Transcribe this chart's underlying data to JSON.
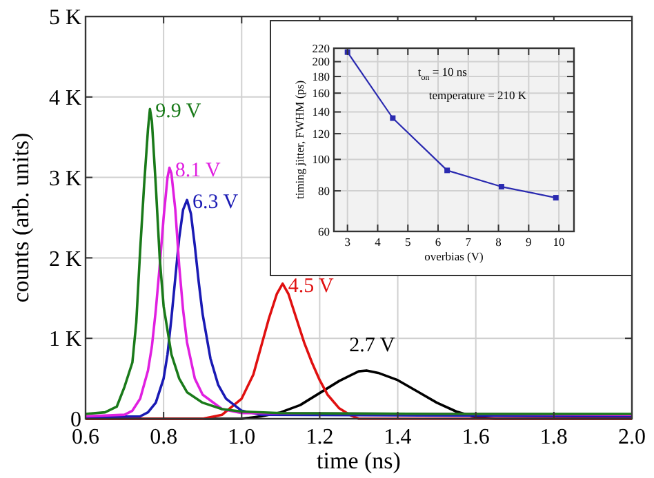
{
  "chart_data": [
    {
      "type": "line",
      "xlabel": "time (ns)",
      "ylabel": "counts (arb. units)",
      "xlim": [
        0.6,
        2.0
      ],
      "ylim": [
        0,
        5000
      ],
      "xticks": [
        0.6,
        0.8,
        {
          "value": 1,
          "label": "1.0"
        },
        1.2,
        1.4,
        1.6,
        1.8,
        {
          "value": 2,
          "label": "2.0"
        }
      ],
      "yticks": [
        0,
        {
          "value": 1000,
          "label": "1 K"
        },
        {
          "value": 2000,
          "label": "2 K"
        },
        {
          "value": 3000,
          "label": "3 K"
        },
        {
          "value": 4000,
          "label": "4 K"
        },
        {
          "value": 5000,
          "label": "5 K"
        }
      ],
      "grid": true,
      "legend": false,
      "series": [
        {
          "name": "2.7 V",
          "color": "#000000",
          "x": [
            0.6,
            1.0,
            1.05,
            1.1,
            1.15,
            1.2,
            1.25,
            1.3,
            1.32,
            1.35,
            1.4,
            1.45,
            1.5,
            1.55,
            1.6,
            1.65,
            2.0
          ],
          "values": [
            0,
            0,
            30,
            80,
            170,
            320,
            470,
            590,
            600,
            570,
            480,
            340,
            200,
            90,
            20,
            0,
            0
          ]
        },
        {
          "name": "4.5 V",
          "color": "#e01010",
          "x": [
            0.6,
            0.9,
            0.95,
            1.0,
            1.03,
            1.05,
            1.07,
            1.09,
            1.105,
            1.12,
            1.14,
            1.16,
            1.18,
            1.2,
            1.22,
            1.25,
            1.28,
            1.3,
            2.0
          ],
          "values": [
            0,
            0,
            50,
            250,
            550,
            900,
            1250,
            1550,
            1680,
            1550,
            1250,
            950,
            700,
            480,
            300,
            130,
            40,
            0,
            0
          ]
        },
        {
          "name": "6.3 V",
          "color": "#1a1ab4",
          "x": [
            0.6,
            0.74,
            0.76,
            0.78,
            0.8,
            0.81,
            0.82,
            0.83,
            0.84,
            0.85,
            0.86,
            0.87,
            0.88,
            0.89,
            0.9,
            0.92,
            0.94,
            0.96,
            1.0,
            1.05,
            2.0
          ],
          "values": [
            20,
            30,
            80,
            200,
            500,
            800,
            1250,
            1750,
            2250,
            2600,
            2720,
            2550,
            2150,
            1700,
            1300,
            750,
            420,
            250,
            100,
            50,
            30
          ]
        },
        {
          "name": "8.1 V",
          "color": "#e020e0",
          "x": [
            0.6,
            0.7,
            0.72,
            0.74,
            0.76,
            0.77,
            0.78,
            0.79,
            0.8,
            0.81,
            0.815,
            0.82,
            0.83,
            0.84,
            0.85,
            0.86,
            0.88,
            0.9,
            0.95,
            1.0,
            2.0
          ],
          "values": [
            30,
            50,
            100,
            250,
            600,
            900,
            1350,
            1900,
            2500,
            3000,
            3120,
            3050,
            2600,
            1900,
            1350,
            950,
            500,
            300,
            120,
            70,
            50
          ]
        },
        {
          "name": "9.9 V",
          "color": "#1a7a1a",
          "x": [
            0.6,
            0.65,
            0.68,
            0.7,
            0.72,
            0.73,
            0.74,
            0.75,
            0.76,
            0.765,
            0.77,
            0.78,
            0.79,
            0.8,
            0.82,
            0.84,
            0.86,
            0.9,
            0.95,
            1.0,
            1.1,
            1.5,
            2.0
          ],
          "values": [
            60,
            80,
            150,
            400,
            700,
            1200,
            2100,
            2900,
            3600,
            3850,
            3700,
            2900,
            2000,
            1400,
            800,
            500,
            330,
            200,
            120,
            90,
            70,
            60,
            60
          ]
        }
      ]
    },
    {
      "type": "line",
      "xlabel": "overbias (V)",
      "ylabel": "timing jitter, FWHM (ps)",
      "xlim": [
        2.55,
        10.5
      ],
      "ylim": [
        60,
        220
      ],
      "log": "y",
      "xticks": [
        3,
        4,
        5,
        6,
        7,
        8,
        9,
        10
      ],
      "yticks": [
        60,
        80,
        100,
        120,
        140,
        160,
        180,
        200,
        220
      ],
      "grid": true,
      "marker": "square",
      "annotations": [
        "t$_{on}$ = 10 ns",
        "temperature = 210 K"
      ],
      "series": [
        {
          "color": "#2a2ab0",
          "x": [
            3,
            4.5,
            6.3,
            8.1,
            9.9
          ],
          "values": [
            214,
            134,
            92.5,
            82.4,
            76.2
          ]
        }
      ]
    }
  ]
}
